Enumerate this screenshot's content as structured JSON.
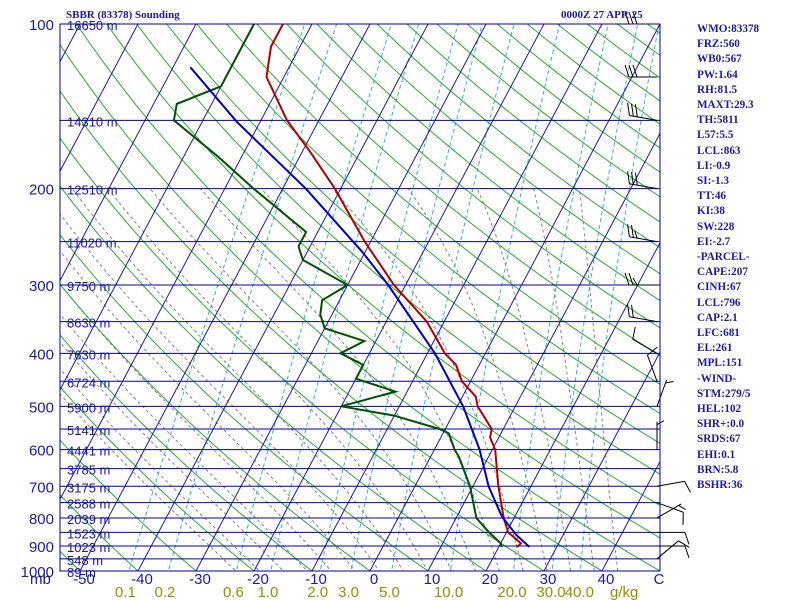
{
  "header": {
    "title_left": "SBBR (83378) Sounding",
    "title_right": "0000Z 27 APR 25"
  },
  "indices": [
    "WMO:83378",
    "FRZ:560",
    "WB0:567",
    "PW:1.64",
    "RH:81.5",
    "MAXT:29.3",
    "TH:5811",
    "L57:5.5",
    "LCL:863",
    "LI:-0.9",
    "SI:-1.3",
    "TT:46",
    "KI:38",
    "SW:228",
    "EI:-2.7",
    "-PARCEL-",
    "CAPE:207",
    "CINH:67",
    "LCL:796",
    "CAP:2.1",
    "LFC:681",
    "EL:261",
    "MPL:151",
    "-WIND-",
    "STM:279/5",
    "HEL:102",
    "SHR+:0.0",
    "SRDS:67",
    "EHI:0.1",
    "BRN:5.8",
    "BSHR:36"
  ],
  "colors": {
    "isobar": "#0000a0",
    "isotherm": "#1a1a9c",
    "dry_adiabat": "#2aa82a",
    "moist_adiabat": "#808080",
    "mixing_ratio": "#2ab0d0",
    "temperature": "#b00000",
    "dewpoint": "#005000",
    "parcel": "#0000c0",
    "wind_barb": "#000000",
    "label": "#1a1a9c",
    "mixing_label": "#909000"
  },
  "chart_data": {
    "type": "line",
    "diagram": "skew-T log-P",
    "y_axis": {
      "scale": "log",
      "unit_label": "mb",
      "range": [
        1000,
        100
      ],
      "ticks": [
        100,
        200,
        300,
        400,
        500,
        600,
        700,
        800,
        900,
        1000
      ]
    },
    "x_axis": {
      "ticks": [
        -50,
        -40,
        -30,
        -20,
        -10,
        0,
        10,
        20,
        30,
        40
      ],
      "tick_labels": [
        "-50",
        "-40",
        "-30",
        "-20",
        "-10",
        "0",
        "10",
        "20",
        "30",
        "40"
      ],
      "label": "C"
    },
    "height_levels": [
      {
        "p": 100,
        "label": "16650 m"
      },
      {
        "p": 150,
        "label": "14310 m"
      },
      {
        "p": 200,
        "label": "12510 m"
      },
      {
        "p": 250,
        "label": "11020 m"
      },
      {
        "p": 300,
        "label": "9750 m"
      },
      {
        "p": 350,
        "label": "8630 m"
      },
      {
        "p": 400,
        "label": "7630 m"
      },
      {
        "p": 450,
        "label": "6724 m"
      },
      {
        "p": 500,
        "label": "5900 m"
      },
      {
        "p": 550,
        "label": "5141 m"
      },
      {
        "p": 600,
        "label": "4441 m"
      },
      {
        "p": 650,
        "label": "3785 m"
      },
      {
        "p": 700,
        "label": "3175 m"
      },
      {
        "p": 750,
        "label": "2588 m"
      },
      {
        "p": 800,
        "label": "2039 m"
      },
      {
        "p": 850,
        "label": "1523 m"
      },
      {
        "p": 900,
        "label": "1023 m"
      },
      {
        "p": 950,
        "label": "548 m"
      },
      {
        "p": 1000,
        "label": "89 m"
      }
    ],
    "mixing_ratio_labels": [
      "0.1",
      "0.2",
      "0.6",
      "1.0",
      "2.0",
      "3.0",
      "5.0",
      "10.0",
      "20.0",
      "30.0",
      "40.0"
    ],
    "mixing_ratio_values": [
      0.1,
      0.2,
      0.6,
      1.0,
      2.0,
      3.0,
      5.0,
      10.0,
      20.0,
      30.0,
      40.0
    ],
    "mixing_ratio_unit": "g/kg",
    "series": [
      {
        "key": "temperature",
        "points": [
          [
            904,
            23.2
          ],
          [
            890,
            23.5
          ],
          [
            850,
            20.3
          ],
          [
            800,
            18.2
          ],
          [
            700,
            14.4
          ],
          [
            600,
            10.5
          ],
          [
            570,
            8.5
          ],
          [
            550,
            8.0
          ],
          [
            500,
            3.5
          ],
          [
            480,
            2.3
          ],
          [
            450,
            -1.5
          ],
          [
            420,
            -4.0
          ],
          [
            400,
            -7.0
          ],
          [
            350,
            -13.0
          ],
          [
            300,
            -22.0
          ],
          [
            250,
            -31.0
          ],
          [
            200,
            -41.0
          ],
          [
            170,
            -49.0
          ],
          [
            150,
            -55.5
          ],
          [
            125,
            -63.0
          ],
          [
            110,
            -65.0
          ],
          [
            100,
            -65.0
          ]
        ]
      },
      {
        "key": "dewpoint",
        "points": [
          [
            904,
            20.5
          ],
          [
            890,
            20.0
          ],
          [
            850,
            17.0
          ],
          [
            800,
            13.5
          ],
          [
            700,
            9.5
          ],
          [
            620,
            5.0
          ],
          [
            600,
            3.5
          ],
          [
            560,
            1.0
          ],
          [
            550,
            -1.0
          ],
          [
            520,
            -10.0
          ],
          [
            500,
            -20.0
          ],
          [
            470,
            -12.0
          ],
          [
            445,
            -20.0
          ],
          [
            420,
            -20.0
          ],
          [
            400,
            -25.0
          ],
          [
            380,
            -22.0
          ],
          [
            360,
            -30.0
          ],
          [
            340,
            -32.0
          ],
          [
            320,
            -33.0
          ],
          [
            300,
            -30.0
          ],
          [
            270,
            -40.0
          ],
          [
            255,
            -42.0
          ],
          [
            240,
            -42.0
          ],
          [
            200,
            -55.0
          ],
          [
            175,
            -64.0
          ],
          [
            150,
            -75.0
          ],
          [
            140,
            -76.0
          ],
          [
            130,
            -70.0
          ],
          [
            110,
            -70.0
          ],
          [
            100,
            -70.0
          ]
        ]
      },
      {
        "key": "parcel",
        "points": [
          [
            904,
            25.3
          ],
          [
            860,
            22.0
          ],
          [
            796,
            17.8
          ],
          [
            700,
            12.7
          ],
          [
            600,
            7.8
          ],
          [
            500,
            1.0
          ],
          [
            400,
            -8.7
          ],
          [
            300,
            -23.0
          ],
          [
            261,
            -30.5
          ],
          [
            200,
            -46.0
          ],
          [
            151,
            -64.0
          ],
          [
            120,
            -77.0
          ]
        ]
      }
    ],
    "wind_barbs": [
      {
        "p": 950,
        "dir": 50,
        "kt": 10
      },
      {
        "p": 900,
        "dir": 90,
        "kt": 10
      },
      {
        "p": 850,
        "dir": 90,
        "kt": 10
      },
      {
        "p": 800,
        "dir": 60,
        "kt": 5
      },
      {
        "p": 750,
        "dir": 110,
        "kt": 10
      },
      {
        "p": 700,
        "dir": 80,
        "kt": 10
      },
      {
        "p": 600,
        "dir": 0,
        "kt": 5
      },
      {
        "p": 500,
        "dir": 20,
        "kt": 5
      },
      {
        "p": 450,
        "dir": 340,
        "kt": 10
      },
      {
        "p": 400,
        "dir": 300,
        "kt": 10
      },
      {
        "p": 350,
        "dir": 280,
        "kt": 20
      },
      {
        "p": 300,
        "dir": 270,
        "kt": 25
      },
      {
        "p": 250,
        "dir": 280,
        "kt": 25
      },
      {
        "p": 200,
        "dir": 280,
        "kt": 30
      },
      {
        "p": 150,
        "dir": 280,
        "kt": 30
      },
      {
        "p": 125,
        "dir": 270,
        "kt": 30
      },
      {
        "p": 100,
        "dir": 270,
        "kt": 30
      }
    ]
  }
}
